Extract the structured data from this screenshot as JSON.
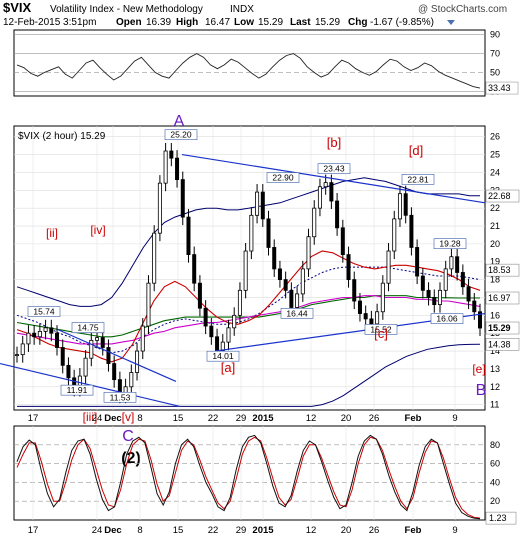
{
  "header": {
    "symbol": "$VIX",
    "name": "Volatility Index - New Methodology",
    "exchange": "INDX",
    "watermark": "@ StockCharts.com",
    "datetime": "12-Feb-2015 3:51pm",
    "quote": {
      "open_label": "Open",
      "open": "16.39",
      "high_label": "High",
      "high": "16.47",
      "low_label": "Low",
      "low": "15.29",
      "last_label": "Last",
      "last": "15.29",
      "chg_label": "Chg",
      "chg": "-1.67 (-9.85%)"
    }
  },
  "colors": {
    "price": "#000000",
    "upper_band": "#00006e",
    "lower_band": "#00006e",
    "ma_red": "#cc0000",
    "ma_green": "#006600",
    "ma_magenta": "#cc00cc",
    "ma_dotted": "#000088",
    "trendline": "#1a33cc",
    "wave_red": "#cc0000",
    "wave_purple": "#6a1bc4",
    "label_box": "#3b5ea8",
    "red_box": "#cc0000"
  },
  "chart_data": [
    {
      "type": "line",
      "name": "rsi-panel",
      "ylim": [
        25,
        95
      ],
      "yticks": [
        30,
        50,
        70,
        90
      ],
      "last_value": "33.43",
      "values": [
        58,
        55,
        49,
        46,
        50,
        53,
        56,
        48,
        44,
        52,
        60,
        63,
        55,
        48,
        42,
        46,
        54,
        62,
        66,
        58,
        50,
        46,
        44,
        52,
        60,
        66,
        70,
        66,
        58,
        54,
        58,
        64,
        61,
        55,
        49,
        44,
        48,
        56,
        63,
        68,
        70,
        65,
        56,
        50,
        45,
        48,
        56,
        63,
        60,
        54,
        50,
        47,
        51,
        58,
        64,
        62,
        56,
        52,
        55,
        60,
        57,
        51,
        47,
        44,
        41,
        38,
        35,
        33.43
      ]
    },
    {
      "type": "line",
      "name": "price-panel",
      "legend": "$VIX (2 hour) 15.29",
      "ylim": [
        10.7,
        26.6
      ],
      "yticks": [
        11,
        12,
        13,
        14,
        15,
        16,
        17,
        18,
        19,
        20,
        21,
        22,
        23,
        24,
        25,
        26
      ],
      "x_tick_labels": [
        "17",
        "24",
        "Dec",
        "8",
        "15",
        "22",
        "29",
        "2015",
        "12",
        "20",
        "26",
        "Feb",
        "9"
      ],
      "right_labels": [
        "22.68",
        "18.53",
        "16.97",
        "15.29",
        "14.38"
      ],
      "price": [
        13.8,
        14.4,
        15.0,
        14.8,
        15.1,
        15.3,
        15.0,
        14.2,
        13.2,
        12.5,
        11.91,
        12.6,
        13.6,
        14.6,
        14.75,
        14.2,
        13.3,
        12.4,
        11.53,
        12.0,
        12.8,
        14.0,
        15.4,
        17.8,
        20.6,
        23.4,
        25.2,
        24.8,
        23.6,
        21.5,
        19.4,
        17.8,
        16.4,
        15.4,
        14.8,
        14.01,
        14.5,
        15.3,
        16.0,
        17.4,
        19.6,
        21.6,
        22.9,
        21.4,
        19.8,
        18.6,
        18.0,
        17.4,
        16.44,
        17.2,
        18.6,
        20.4,
        22.0,
        23.2,
        23.43,
        22.4,
        20.9,
        19.4,
        18.0,
        16.8,
        16.1,
        15.8,
        15.52,
        16.2,
        17.8,
        19.6,
        21.4,
        22.81,
        21.6,
        19.8,
        18.2,
        17.4,
        17.0,
        16.6,
        17.4,
        18.6,
        19.28,
        18.4,
        17.6,
        16.8,
        16.2,
        15.29
      ],
      "upper_band": [
        17.6,
        17.4,
        17.2,
        17.0,
        16.8,
        16.6,
        16.5,
        16.5,
        16.6,
        17.0,
        17.8,
        18.8,
        19.8,
        20.6,
        21.2,
        21.5,
        21.7,
        21.9,
        22.0,
        22.0,
        21.9,
        21.9,
        22.0,
        22.1,
        22.2,
        22.3,
        22.5,
        22.7,
        22.9,
        23.1,
        23.3,
        23.5,
        23.6,
        23.7,
        23.6,
        23.5,
        23.3,
        23.1,
        22.9,
        22.8,
        22.8,
        22.8,
        22.8,
        22.7,
        22.7
      ],
      "lower_band": [
        10.9,
        10.9,
        10.9,
        10.9,
        10.9,
        10.9,
        10.9,
        10.9,
        10.9,
        10.9,
        10.9,
        10.9,
        10.9,
        10.9,
        10.9,
        10.9,
        10.9,
        10.9,
        10.9,
        10.9,
        10.9,
        10.9,
        10.9,
        10.9,
        10.9,
        10.9,
        10.9,
        10.9,
        10.9,
        11.0,
        11.2,
        11.5,
        11.9,
        12.3,
        12.7,
        13.1,
        13.4,
        13.7,
        13.9,
        14.1,
        14.2,
        14.3,
        14.35,
        14.37,
        14.38
      ],
      "ma_red": [
        15.2,
        15.0,
        14.7,
        14.4,
        14.2,
        14.1,
        14.0,
        13.9,
        13.6,
        13.4,
        13.6,
        14.4,
        15.6,
        16.8,
        17.6,
        17.9,
        17.6,
        17.0,
        16.4,
        15.9,
        15.6,
        15.5,
        15.7,
        16.0,
        16.6,
        17.3,
        18.0,
        18.7,
        19.3,
        19.6,
        19.5,
        19.2,
        18.9,
        18.7,
        18.6,
        18.7,
        18.8,
        18.8,
        18.7,
        18.6,
        18.5,
        18.3,
        18.0,
        17.6,
        17.4
      ],
      "ma_green": [
        15.6,
        15.5,
        15.4,
        15.3,
        15.2,
        15.1,
        15.0,
        14.9,
        14.8,
        14.8,
        14.9,
        15.1,
        15.3,
        15.5,
        15.7,
        15.8,
        15.9,
        15.9,
        15.9,
        15.9,
        15.9,
        15.9,
        15.9,
        15.9,
        16.0,
        16.1,
        16.3,
        16.4,
        16.6,
        16.7,
        16.8,
        16.9,
        17.0,
        17.0,
        17.1,
        17.1,
        17.1,
        17.1,
        17.0,
        17.0,
        16.99,
        16.98,
        16.97,
        16.97,
        16.97
      ],
      "ma_magenta": [
        15.0,
        14.9,
        14.8,
        14.7,
        14.6,
        14.5,
        14.4,
        14.4,
        14.4,
        14.4,
        14.5,
        14.6,
        14.8,
        15.0,
        15.1,
        15.3,
        15.4,
        15.5,
        15.6,
        15.6,
        15.7,
        15.8,
        15.9,
        16.0,
        16.1,
        16.2,
        16.3,
        16.5,
        16.7,
        16.8,
        16.9,
        17.0,
        17.0,
        17.1,
        17.1,
        17.0,
        17.0,
        17.0,
        16.9,
        16.9,
        16.8,
        16.8,
        16.7,
        16.6,
        16.5
      ],
      "ma_dotted": [
        16.0,
        15.8,
        15.6,
        15.3,
        15.0,
        14.8,
        14.5,
        14.3,
        14.1,
        13.9,
        14.0,
        14.3,
        14.8,
        15.2,
        15.5,
        15.7,
        15.8,
        15.7,
        15.6,
        15.5,
        15.5,
        15.6,
        15.8,
        16.1,
        16.5,
        16.9,
        17.4,
        17.8,
        18.1,
        18.4,
        18.6,
        18.7,
        18.7,
        18.7,
        18.7,
        18.7,
        18.6,
        18.5,
        18.4,
        18.3,
        18.2,
        18.2,
        18.2,
        18.1,
        18.0
      ],
      "point_labels": [
        "25.20",
        "22.90",
        "23.43",
        "22.81",
        "19.28",
        "15.74",
        "14.75",
        "11.91",
        "11.53",
        "14.01",
        "16.44",
        "15.52",
        "16.06"
      ],
      "wave_labels": {
        "A": "A",
        "b": "[b]",
        "d": "[d]",
        "ii": "[ii]",
        "iv": "[iv]",
        "a": "[a]",
        "c": "[c]",
        "e": "[e]",
        "B": "B",
        "iii": "[iii]",
        "v": "[v]",
        "C": "C",
        "two": "(2)"
      }
    },
    {
      "type": "line",
      "name": "stochastic-panel",
      "ylim": [
        0,
        100
      ],
      "yticks": [
        20,
        40,
        60,
        80
      ],
      "last_value": "1.23",
      "values": [
        62,
        78,
        85,
        80,
        52,
        28,
        14,
        22,
        50,
        74,
        84,
        86,
        70,
        44,
        22,
        10,
        14,
        40,
        70,
        84,
        88,
        82,
        56,
        28,
        16,
        30,
        60,
        80,
        86,
        78,
        58,
        40,
        28,
        14,
        10,
        24,
        54,
        78,
        88,
        90,
        82,
        60,
        36,
        18,
        14,
        26,
        52,
        74,
        84,
        80,
        62,
        42,
        24,
        12,
        16,
        40,
        68,
        84,
        90,
        86,
        70,
        48,
        30,
        16,
        10,
        30,
        58,
        78,
        86,
        82,
        60,
        38,
        18,
        8,
        4,
        2,
        1.23
      ],
      "signal": [
        56,
        70,
        82,
        82,
        62,
        38,
        20,
        20,
        40,
        64,
        80,
        86,
        76,
        54,
        32,
        16,
        14,
        32,
        60,
        80,
        86,
        84,
        64,
        38,
        20,
        26,
        50,
        74,
        84,
        80,
        64,
        46,
        32,
        18,
        12,
        20,
        44,
        70,
        84,
        88,
        84,
        66,
        44,
        24,
        16,
        22,
        44,
        68,
        80,
        80,
        66,
        48,
        30,
        16,
        14,
        32,
        60,
        80,
        88,
        86,
        74,
        54,
        36,
        20,
        12,
        24,
        50,
        72,
        84,
        82,
        66,
        44,
        24,
        12,
        6,
        3,
        2.0
      ],
      "x_tick_labels": [
        "17",
        "24",
        "Dec",
        "8",
        "15",
        "22",
        "29",
        "2015",
        "12",
        "20",
        "26",
        "Feb",
        "9"
      ]
    }
  ]
}
